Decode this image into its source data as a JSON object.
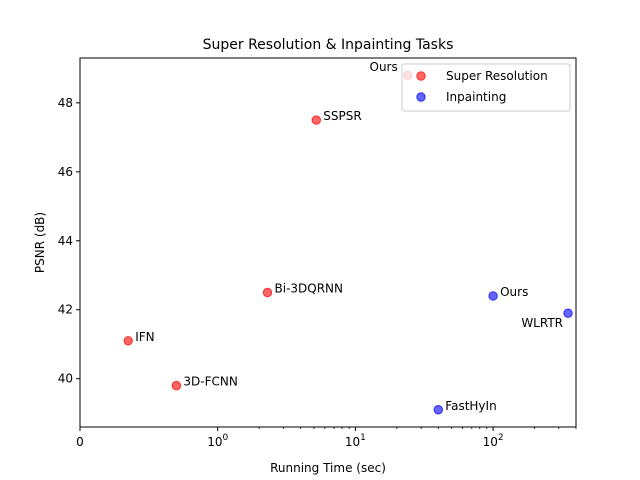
{
  "chart_data": {
    "type": "scatter",
    "title": "Super Resolution & Inpainting Tasks",
    "xlabel": "Running Time (sec)",
    "ylabel": "PSNR (dB)",
    "xscale": "symlog",
    "xlim": [
      0,
      400
    ],
    "ylim": [
      38.6,
      49.3
    ],
    "x_ticks": [
      {
        "value": 0,
        "label": "0"
      },
      {
        "value": 1,
        "label": "10",
        "exp": "0"
      },
      {
        "value": 10,
        "label": "10",
        "exp": "1"
      },
      {
        "value": 100,
        "label": "10",
        "exp": "2"
      }
    ],
    "y_ticks": [
      40,
      42,
      44,
      46,
      48
    ],
    "legend_position": "top-right",
    "grid": false,
    "series": [
      {
        "name": "Super Resolution",
        "color": "#ff0000",
        "points": [
          {
            "x": 24,
            "y": 48.8,
            "label": "Ours"
          },
          {
            "x": 5.2,
            "y": 47.5,
            "label": "SSPSR"
          },
          {
            "x": 2.3,
            "y": 42.5,
            "label": "Bi-3DQRNN"
          },
          {
            "x": 0.35,
            "y": 41.1,
            "label": "IFN"
          },
          {
            "x": 0.7,
            "y": 39.8,
            "label": "3D-FCNN"
          }
        ]
      },
      {
        "name": "Inpainting",
        "color": "#0000ff",
        "points": [
          {
            "x": 100,
            "y": 42.4,
            "label": "Ours"
          },
          {
            "x": 350,
            "y": 41.9,
            "label": "WLRTR"
          },
          {
            "x": 40,
            "y": 39.1,
            "label": "FastHyIn"
          }
        ]
      }
    ]
  }
}
